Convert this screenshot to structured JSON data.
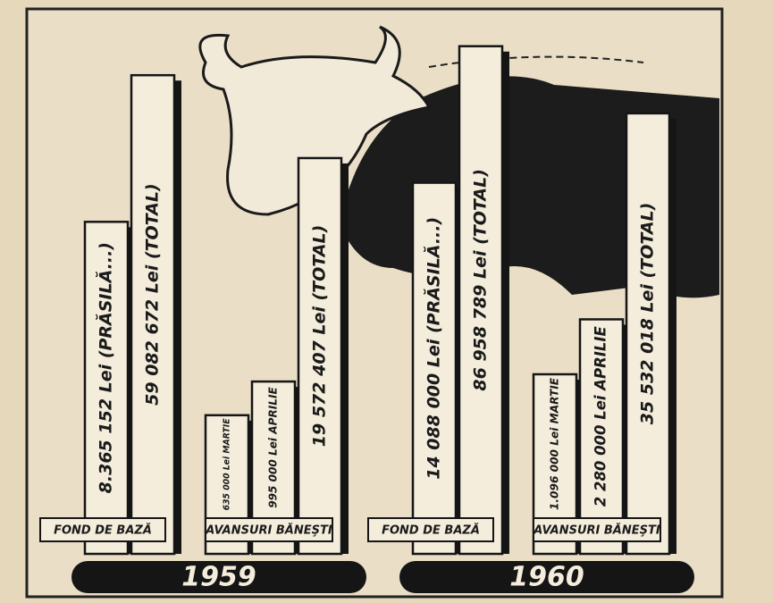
{
  "chart_data": {
    "type": "bar",
    "log": true,
    "ylim": [
      100000,
      100000000
    ],
    "panels": [
      {
        "title": "1959",
        "groups": [
          {
            "name": "FOND DE BAZĂ",
            "values": [
              8365152,
              59082672
            ],
            "value_labels": [
              "8.365 152 Lei (PRĂSILĂ...)",
              "59 082 672 Lei (TOTAL)"
            ]
          },
          {
            "name": "AVANSURI BĂNEŞTI",
            "values": [
              635000,
              995000,
              19572407
            ],
            "value_labels": [
              "635 000 Lei MARTIE",
              "995 000 Lei APRILIE",
              "19 572 407 Lei (TOTAL)"
            ]
          }
        ]
      },
      {
        "title": "1960",
        "groups": [
          {
            "name": "FOND DE BAZĂ",
            "values": [
              14088000,
              86958789
            ],
            "value_labels": [
              "14 088 000 Lei (PRĂSILĂ...)",
              "86 958 789 Lei (TOTAL)"
            ]
          },
          {
            "name": "AVANSURI BĂNEŞTI",
            "values": [
              1096000,
              2280000,
              35532018
            ],
            "value_labels": [
              "1.096 000 Lei MARTIE",
              "2 280 000 Lei APRILIE",
              "35 532 018 Lei (TOTAL)"
            ]
          }
        ]
      }
    ]
  }
}
